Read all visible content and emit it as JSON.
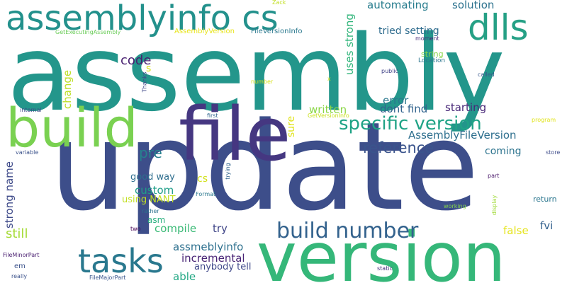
{
  "words": [
    {
      "text": "assembly",
      "color": "#23968b"
    },
    {
      "text": "update",
      "color": "#3d4e8a"
    },
    {
      "text": "file",
      "color": "#453781"
    },
    {
      "text": "version",
      "color": "#35b779"
    },
    {
      "text": "build",
      "color": "#7ad151"
    },
    {
      "text": "assemblyinfo cs",
      "color": "#23918c"
    },
    {
      "text": "dlls",
      "color": "#25a085"
    },
    {
      "text": "tasks",
      "color": "#29788e"
    },
    {
      "text": "build number",
      "color": "#33628d"
    },
    {
      "text": "specific version",
      "color": "#20a386"
    },
    {
      "text": "reference",
      "color": "#3a548c"
    },
    {
      "text": "automating",
      "color": "#287d8e"
    },
    {
      "text": "solution",
      "color": "#2c728e"
    },
    {
      "text": "AssemblyFileVersion",
      "color": "#2e6f8e"
    },
    {
      "text": "assmeblyinfo",
      "color": "#2d708e"
    },
    {
      "text": "incremental",
      "color": "#482475"
    },
    {
      "text": "code",
      "color": "#481f70"
    },
    {
      "text": "tried setting",
      "color": "#2f6c8e"
    },
    {
      "text": "dont find",
      "color": "#32648e"
    },
    {
      "text": "starting",
      "color": "#482878"
    },
    {
      "text": "written",
      "color": "#8bd646"
    },
    {
      "text": "error",
      "color": "#2a788e"
    },
    {
      "text": "uses strong",
      "color": "#31b57b"
    },
    {
      "text": "change",
      "color": "#bddf26"
    },
    {
      "text": "strong name",
      "color": "#3e4a89"
    },
    {
      "text": "sure",
      "color": "#e0e318"
    },
    {
      "text": "pre",
      "color": "#26818e"
    },
    {
      "text": "custom",
      "color": "#1f9e89"
    },
    {
      "text": "compile",
      "color": "#3aba76"
    },
    {
      "text": "try",
      "color": "#404688"
    },
    {
      "text": "still",
      "color": "#a5db36"
    },
    {
      "text": "coming",
      "color": "#2c738e"
    },
    {
      "text": "good way",
      "color": "#2e6e8e"
    },
    {
      "text": "cs",
      "color": "#d2e21b"
    },
    {
      "text": "using NANT",
      "color": "#c2df23"
    },
    {
      "text": "anybody tell",
      "color": "#3f4889"
    },
    {
      "text": "able",
      "color": "#22a884"
    },
    {
      "text": "false",
      "color": "#e5e419"
    },
    {
      "text": "fvi",
      "color": "#34618d"
    },
    {
      "text": "asm",
      "color": "#29af7f"
    },
    {
      "text": "em",
      "color": "#3b528b"
    },
    {
      "text": "s",
      "color": "#d8e219"
    },
    {
      "text": "string",
      "color": "#86d549"
    },
    {
      "text": "Location",
      "color": "#2b758e"
    },
    {
      "text": "moment",
      "color": "#472c7a"
    },
    {
      "text": "public",
      "color": "#404387"
    },
    {
      "text": "called",
      "color": "#38598c"
    },
    {
      "text": "Zack",
      "color": "#c2df23"
    },
    {
      "text": "x",
      "color": "#cde11d"
    },
    {
      "text": "number",
      "color": "#d8e219"
    },
    {
      "text": "GetExecutingAssembly",
      "color": "#6ccd5a"
    },
    {
      "text": "AssemblyVersion",
      "color": "#e7e419"
    },
    {
      "text": "FileVersionInfo",
      "color": "#2a788e"
    },
    {
      "text": "Thanks",
      "color": "#3f4788"
    },
    {
      "text": "internal",
      "color": "#3e4989"
    },
    {
      "text": "first",
      "color": "#31668e"
    },
    {
      "text": "GetVersionInfo",
      "color": "#c8e020"
    },
    {
      "text": "program",
      "color": "#e0e318"
    },
    {
      "text": "variable",
      "color": "#3b528b"
    },
    {
      "text": "trying",
      "color": "#32658e"
    },
    {
      "text": "Format",
      "color": "#2a788e"
    },
    {
      "text": "part",
      "color": "#481769"
    },
    {
      "text": "store",
      "color": "#3e4c8a"
    },
    {
      "text": "return",
      "color": "#2a768e"
    },
    {
      "text": "display",
      "color": "#a0da39"
    },
    {
      "text": "working",
      "color": "#84d44b"
    },
    {
      "text": "rather",
      "color": "#2c728e"
    },
    {
      "text": "two",
      "color": "#440154"
    },
    {
      "text": "FileMinorPart",
      "color": "#481d6f"
    },
    {
      "text": "static",
      "color": "#46307e"
    },
    {
      "text": "really",
      "color": "#3b528b"
    },
    {
      "text": "FileMajorPart",
      "color": "#39558c"
    }
  ]
}
